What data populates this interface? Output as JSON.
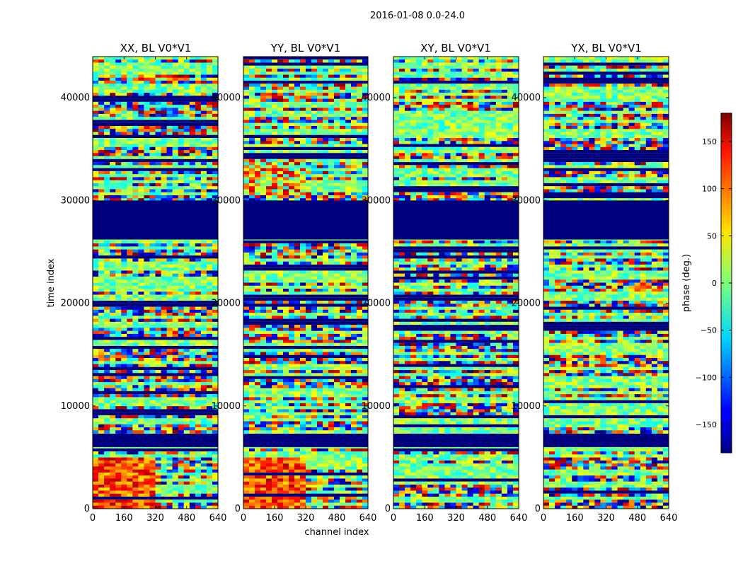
{
  "figure": {
    "suptitle": "2016-01-08 0.0-24.0"
  },
  "chart_data": {
    "type": "heatmap",
    "xlabel": "channel index",
    "ylabel": "time index",
    "x_range": [
      0,
      640
    ],
    "y_range": [
      0,
      44000
    ],
    "x_ticks": [
      0,
      160,
      320,
      480,
      640
    ],
    "y_ticks": [
      0,
      10000,
      20000,
      30000,
      40000
    ],
    "panels": [
      {
        "title": "XX, BL V0*V1"
      },
      {
        "title": "YY, BL V0*V1"
      },
      {
        "title": "XY, BL V0*V1"
      },
      {
        "title": "YX, BL V0*V1"
      }
    ],
    "masked_time_ranges": [
      [
        26200,
        30000
      ],
      [
        6000,
        7300
      ]
    ],
    "colorbar": {
      "label": "phase (deg.)",
      "range": [
        -180,
        180
      ],
      "ticks": [
        150,
        100,
        50,
        0,
        -50,
        -100,
        -150
      ],
      "tick_labels": [
        "150",
        "100",
        "50",
        "0",
        "−50",
        "−100",
        "−150"
      ],
      "colormap": "jet"
    }
  },
  "colors": {
    "masked": "#00007f",
    "background": "#ffffff",
    "axis": "#000000"
  }
}
